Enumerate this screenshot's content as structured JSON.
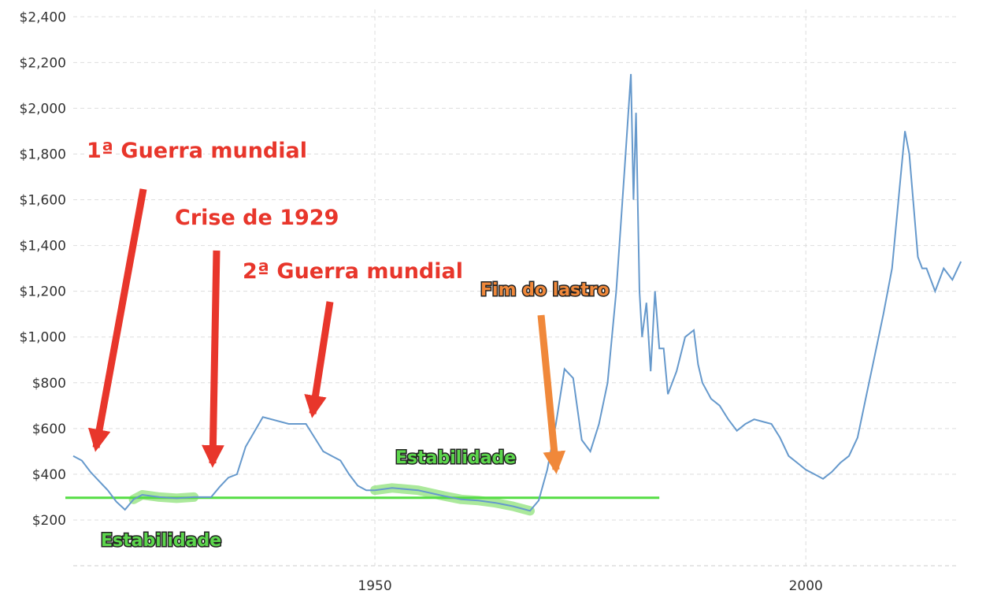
{
  "chart_data": {
    "type": "line",
    "title": "",
    "xlabel": "",
    "ylabel": "",
    "x_ticks": [
      "1950",
      "2000"
    ],
    "y_ticks": [
      "$200",
      "$400",
      "$600",
      "$800",
      "$1,000",
      "$1,200",
      "$1,400",
      "$1,600",
      "$1,800",
      "$2,000",
      "$2,200",
      "$2,400"
    ],
    "xlim": [
      1915,
      2018
    ],
    "ylim": [
      0,
      2400
    ],
    "grid": true,
    "series": [
      {
        "color": "#6699cc",
        "x": [
          1915,
          1916,
          1917,
          1918,
          1919,
          1920,
          1921,
          1922,
          1923,
          1925,
          1927,
          1929,
          1931,
          1932,
          1933,
          1934,
          1935,
          1937,
          1940,
          1942,
          1944,
          1945,
          1946,
          1947,
          1948,
          1949,
          1950,
          1952,
          1955,
          1958,
          1960,
          1962,
          1964,
          1966,
          1967,
          1968,
          1969,
          1970,
          1971,
          1972,
          1973,
          1974,
          1975,
          1976,
          1977,
          1978,
          1979,
          1979.7,
          1980,
          1980.3,
          1980.7,
          1981,
          1981.5,
          1982,
          1982.5,
          1983,
          1983.5,
          1984,
          1985,
          1986,
          1987,
          1987.5,
          1988,
          1989,
          1990,
          1991,
          1992,
          1993,
          1994,
          1995,
          1996,
          1997,
          1998,
          1999,
          2000,
          2001,
          2002,
          2003,
          2004,
          2005,
          2006,
          2007,
          2008,
          2009,
          2010,
          2011,
          2011.5,
          2012,
          2013,
          2013.5,
          2014,
          2015,
          2016,
          2017,
          2018
        ],
        "values": [
          480,
          460,
          410,
          370,
          330,
          280,
          245,
          290,
          310,
          300,
          295,
          300,
          300,
          345,
          385,
          400,
          520,
          650,
          620,
          620,
          500,
          480,
          460,
          400,
          350,
          330,
          330,
          340,
          330,
          305,
          290,
          285,
          275,
          260,
          250,
          240,
          285,
          420,
          620,
          860,
          820,
          550,
          500,
          620,
          800,
          1200,
          1750,
          2150,
          1600,
          1980,
          1200,
          1000,
          1150,
          850,
          1200,
          950,
          950,
          750,
          850,
          1000,
          1030,
          880,
          800,
          730,
          700,
          640,
          590,
          620,
          640,
          630,
          620,
          560,
          480,
          450,
          420,
          400,
          380,
          410,
          450,
          480,
          560,
          740,
          920,
          1100,
          1300,
          1700,
          1900,
          1800,
          1350,
          1300,
          1300,
          1200,
          1300,
          1250,
          1330
        ]
      }
    ],
    "reference_line": {
      "y": 297,
      "x_start": 1915,
      "x_end": 1983,
      "color": "#55dd44"
    },
    "highlight_bands": [
      {
        "x_start": 1921.5,
        "x_end": 1930,
        "color": "#8fe27a"
      },
      {
        "x_start": 1950,
        "x_end": 1968.2,
        "color": "#8fe27a"
      }
    ],
    "annotations": [
      {
        "text": "1ª Guerra mundial",
        "style": "red"
      },
      {
        "text": "Crise de 1929",
        "style": "red"
      },
      {
        "text": "2ª Guerra mundial",
        "style": "red"
      },
      {
        "text": "Fim do lastro",
        "style": "orange"
      },
      {
        "text": "Estabilidade",
        "style": "green"
      },
      {
        "text": "Estabilidade",
        "style": "green"
      }
    ]
  }
}
